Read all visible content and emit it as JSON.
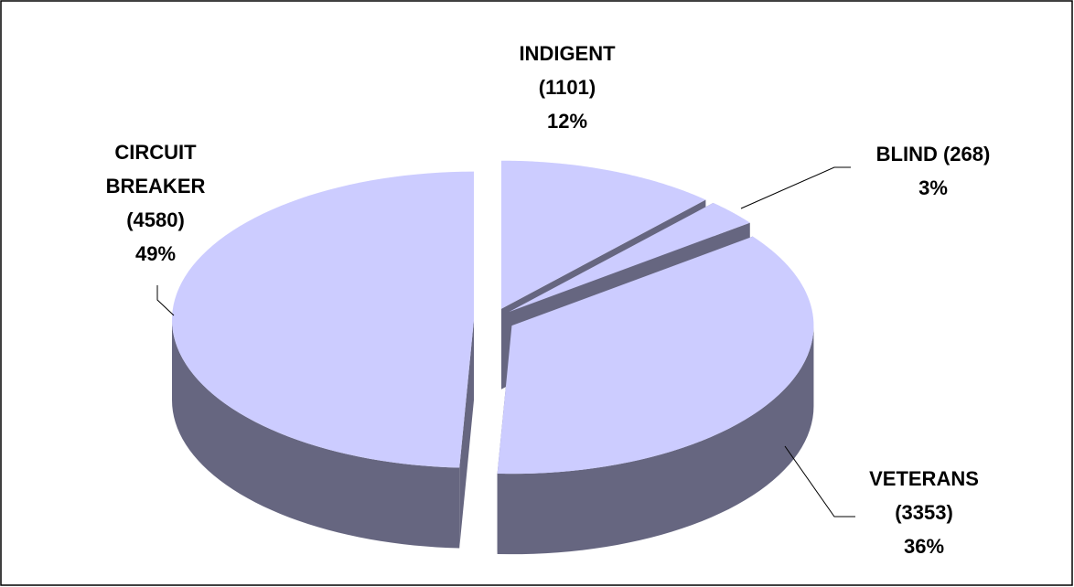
{
  "chart_data": {
    "type": "pie",
    "categories": [
      "INDIGENT",
      "BLIND",
      "VETERANS",
      "CIRCUIT BREAKER"
    ],
    "values": [
      1101,
      268,
      3353,
      4580
    ],
    "value_labels": [
      "(1101)",
      "(268)",
      "(3353)",
      "(4580)"
    ],
    "percents": [
      12,
      3,
      36,
      49
    ],
    "percent_labels": [
      "12%",
      "3%",
      "36%",
      "49%"
    ],
    "color": "#ccccff",
    "side_color": "#666680"
  }
}
